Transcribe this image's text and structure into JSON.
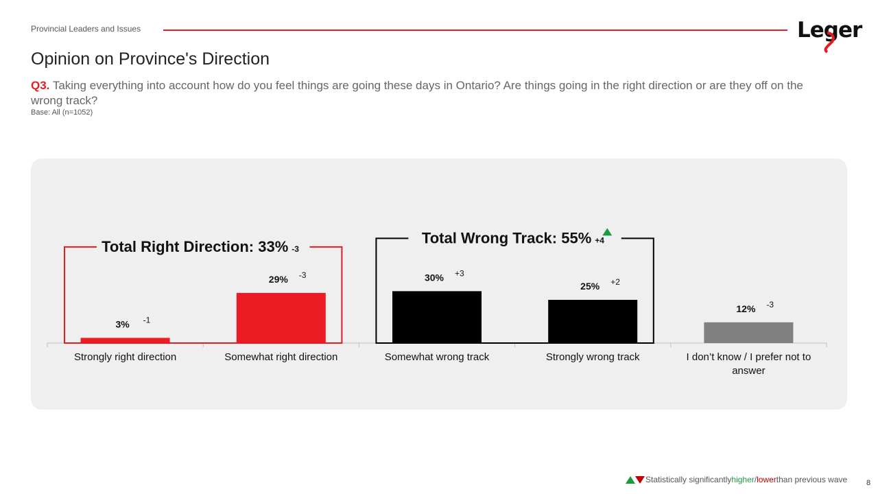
{
  "header": {
    "section": "Provincial Leaders and Issues",
    "logo_text": "Leger",
    "accent_color": "#e31b23"
  },
  "page_title": "Opinion on Province's Direction",
  "question": {
    "number": "Q3.",
    "text": "Taking everything into account how do you feel things are going these days in Ontario? Are things going in the right direction or are they off on the wrong track?",
    "base": "Base: All (n=1052)"
  },
  "chart_data": {
    "type": "bar",
    "categories": [
      "Strongly right direction",
      "Somewhat right direction",
      "Somewhat wrong track",
      "Strongly wrong track",
      "I don’t know / I prefer not to answer"
    ],
    "values": [
      3,
      29,
      30,
      25,
      12
    ],
    "value_labels": [
      "3%",
      "29%",
      "30%",
      "25%",
      "12%"
    ],
    "deltas": [
      "-1",
      "-3",
      "+3",
      "+2",
      "-3"
    ],
    "colors": [
      "#ed1c24",
      "#ed1c24",
      "#000000",
      "#000000",
      "#808080"
    ],
    "ylim": [
      0,
      35
    ],
    "groups": [
      {
        "label": "Total Right Direction: 33%",
        "delta": "-3",
        "from": 0,
        "to": 1,
        "border_color": "#e31b23",
        "significance": "none"
      },
      {
        "label": "Total Wrong Track: 55%",
        "delta": "+4",
        "from": 2,
        "to": 3,
        "border_color": "#000000",
        "significance": "higher"
      }
    ]
  },
  "footer": {
    "note_pre": "Statistically significantly ",
    "note_higher": "higher",
    "note_sep": "/",
    "note_lower": "lower",
    "note_post": " than previous wave",
    "higher_color": "#1a9c3e",
    "lower_color": "#c00000",
    "page_number": "8"
  }
}
